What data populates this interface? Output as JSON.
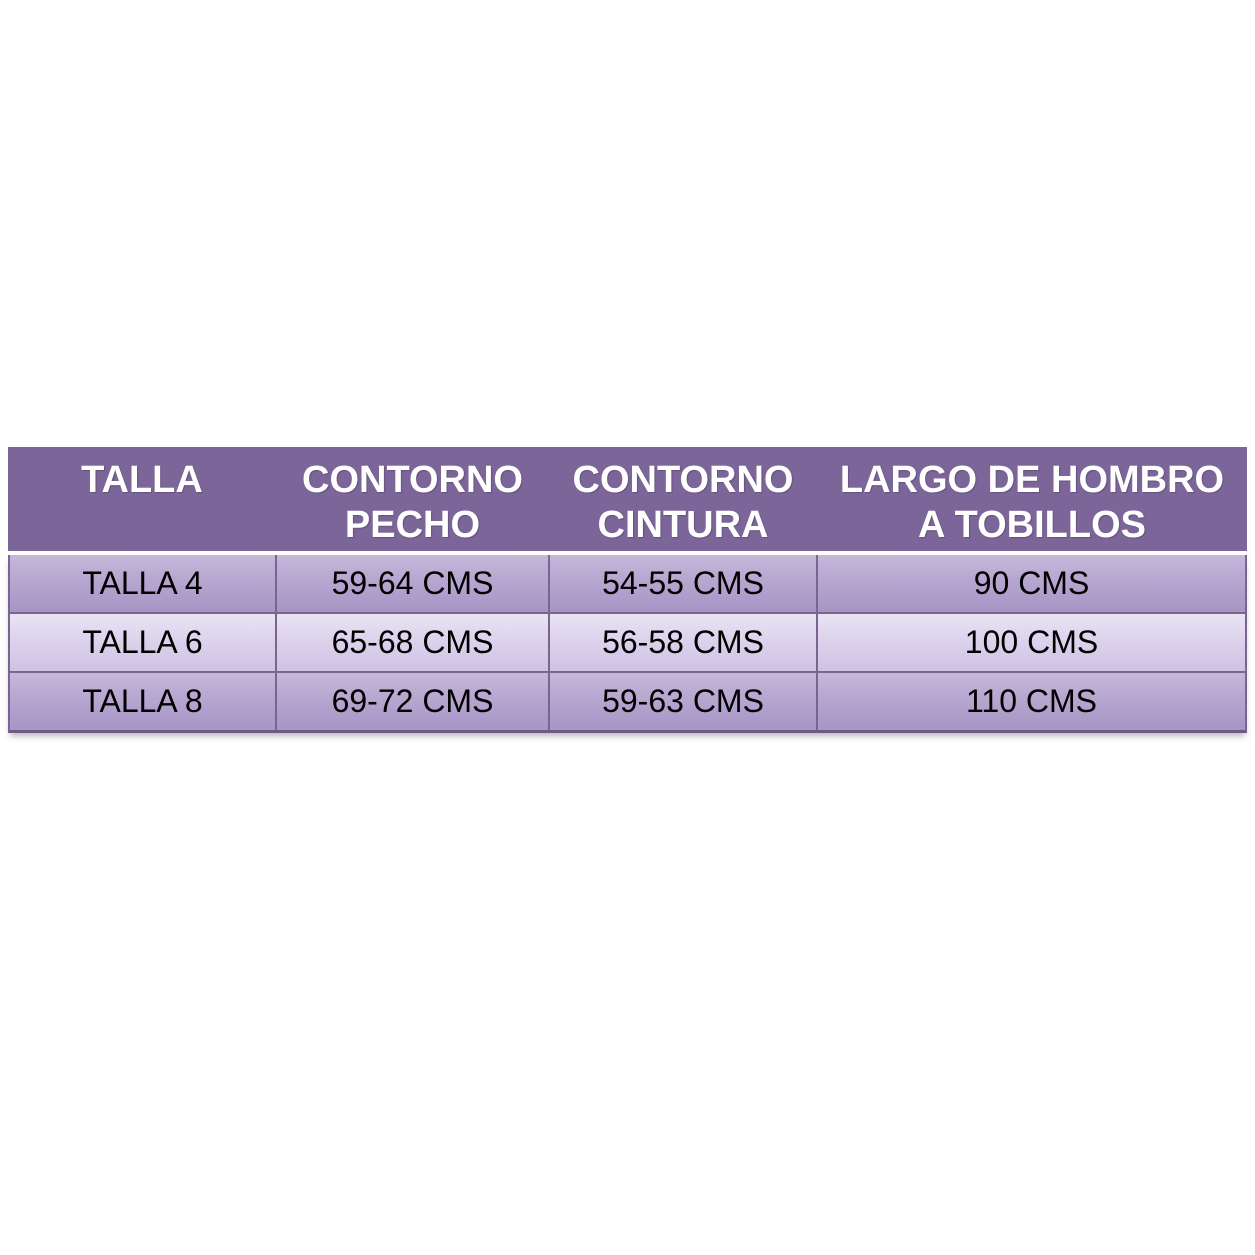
{
  "colors": {
    "page_background": "#FFFFFF",
    "header_background": "#7C6699",
    "header_text": "#FFFFFF",
    "row_dark_background": "#B3A3CC",
    "row_light_background": "#DCD3EC",
    "cell_border": "#7B648F",
    "header_separator": "#FFFFFF",
    "body_text": "#000000"
  },
  "table": {
    "columns": [
      {
        "id": "talla",
        "label": "TALLA",
        "lines": [
          "TALLA",
          ""
        ]
      },
      {
        "id": "contorno-pecho",
        "label": "CONTORNO PECHO",
        "lines": [
          "CONTORNO",
          "PECHO"
        ]
      },
      {
        "id": "contorno-cintura",
        "label": "CONTORNO CINTURA",
        "lines": [
          "CONTORNO",
          "CINTURA"
        ]
      },
      {
        "id": "largo-hombro-tobillos",
        "label": "LARGO DE HOMBRO A TOBILLOS",
        "lines": [
          "LARGO DE HOMBRO",
          "A TOBILLOS"
        ]
      }
    ],
    "rows": [
      [
        "TALLA 4",
        "59-64 CMS",
        "54-55 CMS",
        "90 CMS"
      ],
      [
        "TALLA 6",
        "65-68 CMS",
        "56-58 CMS",
        "100 CMS"
      ],
      [
        "TALLA 8",
        "69-72 CMS",
        "59-63 CMS",
        "110 CMS"
      ]
    ]
  },
  "chart_data": {
    "type": "table",
    "title": "",
    "columns": [
      "TALLA",
      "CONTORNO PECHO",
      "CONTORNO CINTURA",
      "LARGO DE HOMBRO A TOBILLOS"
    ],
    "rows": [
      [
        "TALLA 4",
        "59-64 CMS",
        "54-55 CMS",
        "90 CMS"
      ],
      [
        "TALLA 6",
        "65-68 CMS",
        "56-58 CMS",
        "100 CMS"
      ],
      [
        "TALLA 8",
        "69-72 CMS",
        "59-63 CMS",
        "110 CMS"
      ]
    ],
    "units": "CMS",
    "layout": {
      "header_style": "dark-purple band, white bold text, two-line headers",
      "row_banding": [
        "medium-purple",
        "light-purple",
        "medium-purple"
      ],
      "grid": "vertical dividers in body only, white line under header"
    }
  }
}
